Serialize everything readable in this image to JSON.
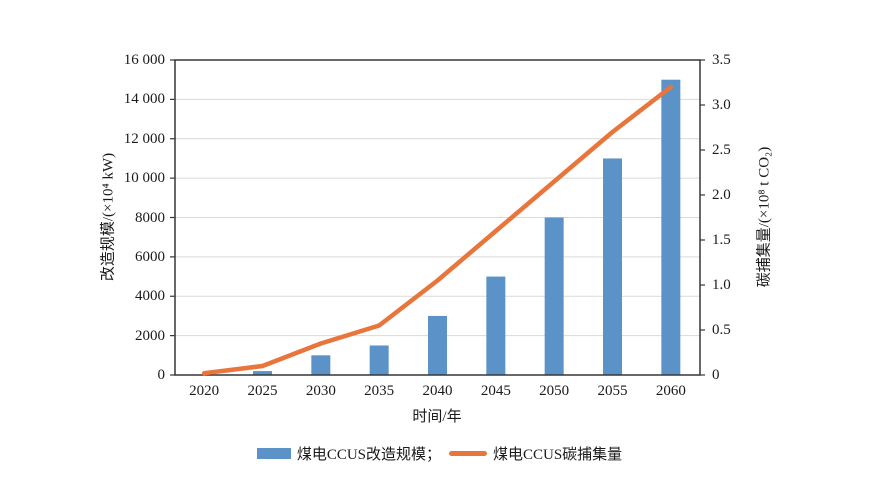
{
  "chart_data": {
    "type": "bar",
    "title": "",
    "categories": [
      "2020",
      "2025",
      "2030",
      "2035",
      "2040",
      "2045",
      "2050",
      "2055",
      "2060"
    ],
    "series": [
      {
        "name": "煤电CCUS改造规模",
        "type": "bar",
        "axis": "left",
        "values": [
          0,
          200,
          1000,
          1500,
          3000,
          5000,
          8000,
          11000,
          15000
        ]
      },
      {
        "name": "煤电CCUS碳捕集量",
        "type": "line",
        "axis": "right",
        "values": [
          0.02,
          0.1,
          0.35,
          0.55,
          1.05,
          1.6,
          2.15,
          2.7,
          3.2
        ]
      }
    ],
    "x_axis": {
      "title": "时间/年"
    },
    "left_axis": {
      "title": "改造规模/(×10⁴ kW)",
      "min": 0,
      "max": 16000,
      "tick_step": 2000,
      "tick_labels": [
        "0",
        "2000",
        "4000",
        "6000",
        "8000",
        "10 000",
        "12 000",
        "14 000",
        "16 000"
      ]
    },
    "right_axis": {
      "title": "碳捕集量/(×10⁸ t CO₂)",
      "min": 0,
      "max": 3.5,
      "tick_step": 0.5,
      "tick_labels": [
        "0",
        "0.5",
        "1.0",
        "1.5",
        "2.0",
        "2.5",
        "3.0",
        "3.5"
      ]
    },
    "grid": "horizontal gridlines on",
    "legend_position": "bottom"
  },
  "legend": {
    "bar_label": "煤电CCUS改造规模；",
    "line_label": "煤电CCUS碳捕集量"
  },
  "colors": {
    "bar": "#5B93C9",
    "line": "#E8763C",
    "gridline": "#D9D9D9",
    "frame": "#363636",
    "text": "#1a1a1a",
    "background": "#ffffff"
  }
}
